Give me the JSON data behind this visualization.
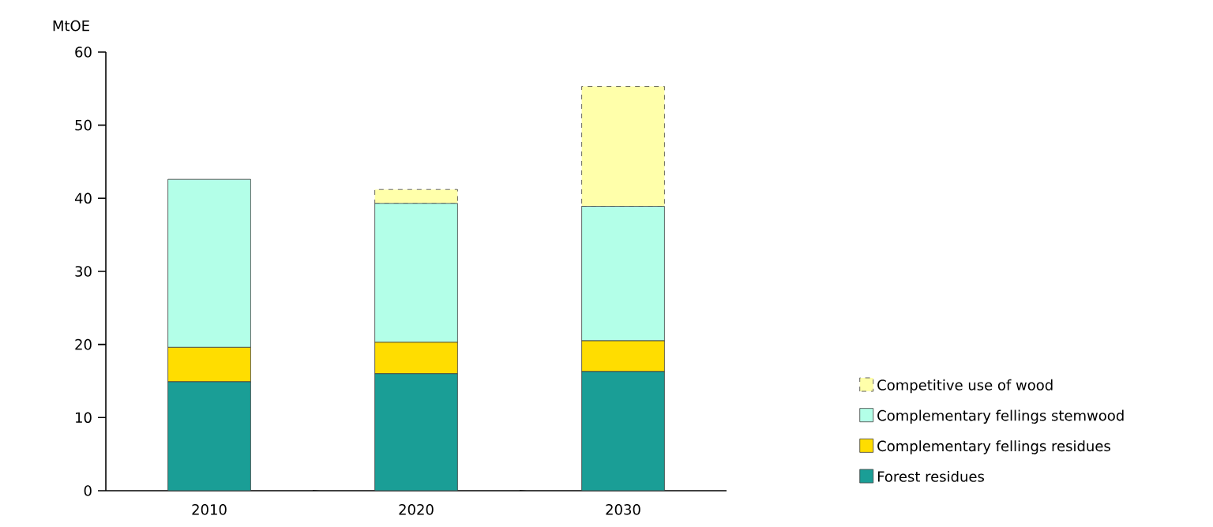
{
  "chart_data": {
    "type": "bar",
    "stacked": true,
    "ylabel": "MtOE",
    "categories": [
      "2010",
      "2020",
      "2030"
    ],
    "series": [
      {
        "name": "Forest residues",
        "color": "#1a9e96",
        "values": [
          14.9,
          16.0,
          16.3
        ]
      },
      {
        "name": "Complementary fellings residues",
        "color": "#ffdd00",
        "values": [
          4.7,
          4.3,
          4.2
        ]
      },
      {
        "name": "Complementary fellings stemwood",
        "color": "#b3ffe8",
        "values": [
          23.0,
          19.0,
          18.4
        ]
      },
      {
        "name": "Competitive use of wood",
        "color": "#ffffaa",
        "line_style": "dashed",
        "values": [
          null,
          1.9,
          16.4
        ]
      }
    ],
    "ylim": [
      0,
      60
    ],
    "yticks": [
      0,
      10,
      20,
      30,
      40,
      50,
      60
    ],
    "grid": false,
    "legend": "right"
  }
}
